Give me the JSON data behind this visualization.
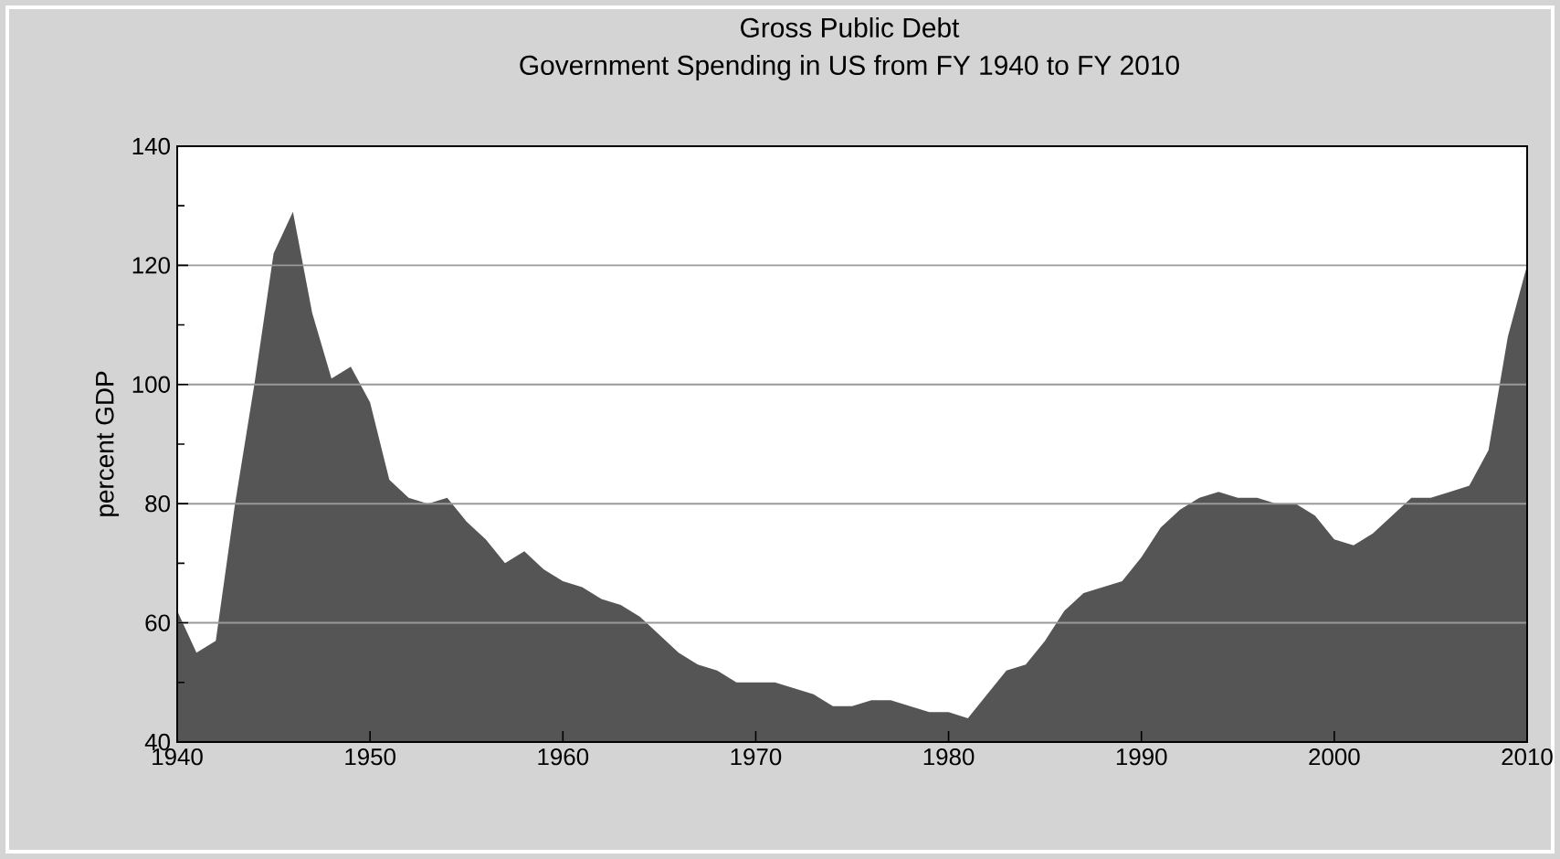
{
  "chart_data": {
    "type": "area",
    "title": "Gross Public Debt",
    "subtitle": "Government Spending in US from FY 1940 to FY 2010",
    "ylabel": "percent GDP",
    "x": [
      1940,
      1941,
      1942,
      1943,
      1944,
      1945,
      1946,
      1947,
      1948,
      1949,
      1950,
      1951,
      1952,
      1953,
      1954,
      1955,
      1956,
      1957,
      1958,
      1959,
      1960,
      1961,
      1962,
      1963,
      1964,
      1965,
      1966,
      1967,
      1968,
      1969,
      1970,
      1971,
      1972,
      1973,
      1974,
      1975,
      1976,
      1977,
      1978,
      1979,
      1980,
      1981,
      1982,
      1983,
      1984,
      1985,
      1986,
      1987,
      1988,
      1989,
      1990,
      1991,
      1992,
      1993,
      1994,
      1995,
      1996,
      1997,
      1998,
      1999,
      2000,
      2001,
      2002,
      2003,
      2004,
      2005,
      2006,
      2007,
      2008,
      2009,
      2010
    ],
    "values": [
      62,
      55,
      57,
      80,
      100,
      122,
      129,
      112,
      101,
      103,
      97,
      84,
      81,
      80,
      81,
      77,
      74,
      70,
      72,
      69,
      67,
      66,
      64,
      63,
      61,
      58,
      55,
      53,
      52,
      50,
      50,
      50,
      49,
      48,
      46,
      46,
      47,
      47,
      46,
      45,
      45,
      44,
      48,
      52,
      53,
      57,
      62,
      65,
      66,
      67,
      71,
      76,
      79,
      81,
      82,
      81,
      81,
      80,
      80,
      78,
      74,
      73,
      75,
      78,
      81,
      81,
      82,
      83,
      89,
      108,
      120
    ],
    "color": "#555555",
    "xlim": [
      1940,
      2010
    ],
    "ylim": [
      40,
      140
    ],
    "xticks": [
      1940,
      1950,
      1960,
      1970,
      1980,
      1990,
      2000,
      2010
    ],
    "yticks": [
      40,
      {
        "value": 50,
        "label": null
      },
      60,
      {
        "value": 70,
        "label": null
      },
      80,
      {
        "value": 90,
        "label": null
      },
      100,
      {
        "value": 110,
        "label": null
      },
      120,
      {
        "value": 130,
        "label": null
      },
      140
    ],
    "grid": "y"
  }
}
